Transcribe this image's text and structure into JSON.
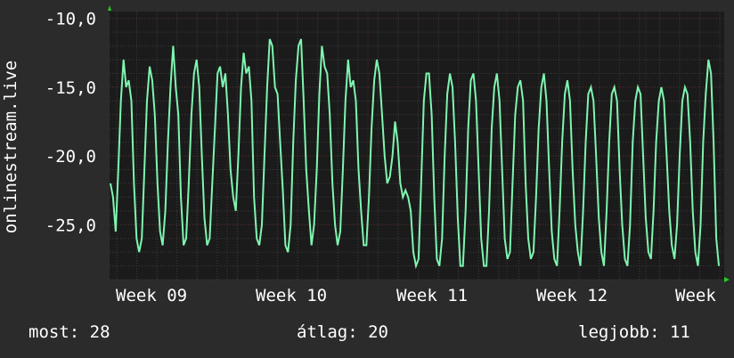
{
  "colors": {
    "background": "#2b2b2b",
    "plot_background": "#1b1b1b",
    "grid": "#3e3e3e",
    "grid_major": "#5a2a2a",
    "series_line": "#7ff5b0",
    "axis_arrow": "#22cc22",
    "text": "#ffffff"
  },
  "chart_data": {
    "type": "line",
    "ylabel": "onlinestream.live",
    "ylim": [
      -29.0,
      -9.5
    ],
    "yticks": [
      "-10,0",
      "-15,0",
      "-20,0",
      "-25,0"
    ],
    "ytick_values": [
      -10,
      -15,
      -20,
      -25
    ],
    "xticks": [
      "Week 09",
      "Week 10",
      "Week 11",
      "Week 12",
      "Week"
    ],
    "grid": true,
    "series": [
      {
        "values": [
          -22,
          -23,
          -25.5,
          -21,
          -16,
          -13,
          -15,
          -14.5,
          -16,
          -22,
          -26,
          -27,
          -26,
          -21,
          -16,
          -13.5,
          -14.5,
          -17,
          -22,
          -25.5,
          -26.5,
          -24,
          -19,
          -15,
          -12,
          -15,
          -17,
          -23,
          -26.5,
          -26,
          -22,
          -17,
          -14,
          -13,
          -15,
          -20,
          -24.5,
          -26.5,
          -26,
          -22,
          -18,
          -14,
          -13.5,
          -15,
          -14,
          -17,
          -21,
          -23,
          -24,
          -20,
          -15,
          -12.5,
          -14,
          -13.5,
          -16,
          -23,
          -26,
          -26.5,
          -25,
          -20,
          -15,
          -11.5,
          -12,
          -15,
          -15.5,
          -19,
          -22.5,
          -26.5,
          -27,
          -25,
          -19,
          -14.5,
          -12,
          -11.5,
          -16,
          -21,
          -24,
          -26.5,
          -25,
          -21,
          -15.5,
          -12,
          -13.5,
          -14,
          -17,
          -22,
          -25,
          -26.5,
          -25.5,
          -21,
          -16,
          -13,
          -15,
          -14.5,
          -16,
          -21,
          -24,
          -26.5,
          -26.5,
          -23,
          -18,
          -14.5,
          -13,
          -14,
          -17,
          -20,
          -22,
          -21.5,
          -20,
          -17.5,
          -19,
          -22,
          -23,
          -22.5,
          -23,
          -24,
          -27,
          -28,
          -27.5,
          -22,
          -16,
          -14,
          -14,
          -17,
          -23,
          -27.5,
          -28,
          -26,
          -20,
          -15.5,
          -14,
          -15,
          -19,
          -24.5,
          -28,
          -28,
          -24,
          -18,
          -14.5,
          -14,
          -16,
          -21,
          -26,
          -28,
          -28,
          -24,
          -18,
          -15,
          -14,
          -16,
          -21,
          -26,
          -27.5,
          -27,
          -22,
          -17,
          -15,
          -14.5,
          -16,
          -22,
          -26,
          -27.5,
          -27,
          -23,
          -18,
          -15,
          -14,
          -16,
          -21,
          -25.5,
          -27.5,
          -28,
          -24,
          -19,
          -15.5,
          -14.5,
          -16,
          -21,
          -25,
          -27,
          -28,
          -24,
          -19,
          -15.5,
          -15,
          -16,
          -20,
          -24.5,
          -27,
          -28,
          -24,
          -19,
          -15.5,
          -15,
          -16,
          -21,
          -25,
          -27.5,
          -28,
          -25,
          -19,
          -16,
          -15,
          -15.5,
          -20,
          -24.5,
          -27,
          -27.5,
          -24,
          -19,
          -16,
          -15,
          -16,
          -20,
          -24,
          -26.5,
          -27.5,
          -25,
          -20,
          -16,
          -15,
          -15.5,
          -19,
          -24,
          -27,
          -28,
          -25,
          -19,
          -15.5,
          -13,
          -14,
          -19,
          -26,
          -28
        ]
      }
    ]
  },
  "stats": {
    "current": "most: 28",
    "average": "átlag: 20",
    "best": "legjobb: 11"
  }
}
